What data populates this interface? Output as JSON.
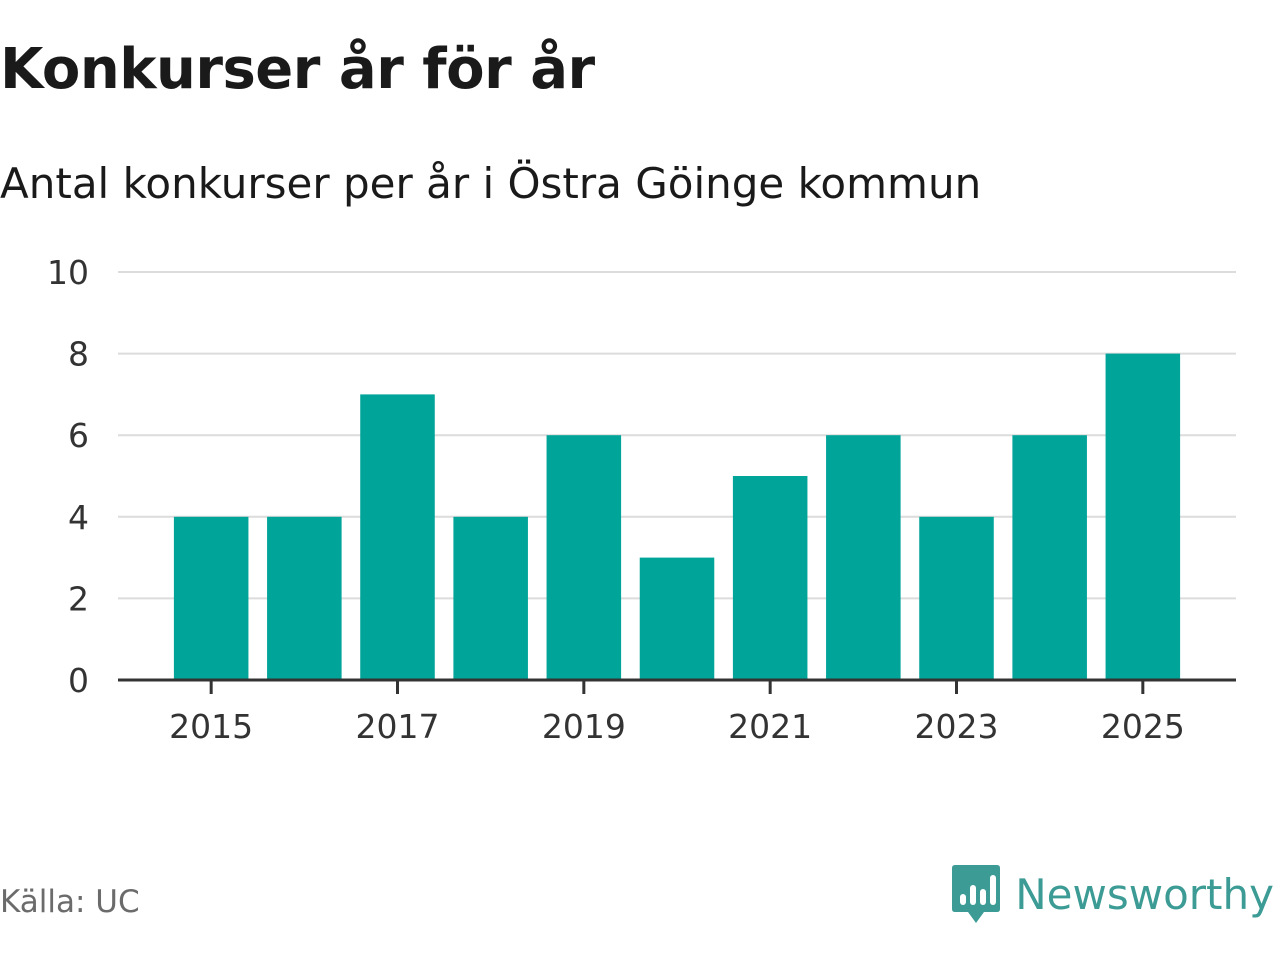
{
  "chart_data": {
    "type": "bar",
    "title": "Konkurser år för år",
    "subtitle": "Antal konkurser per år i Östra Göinge kommun",
    "categories": [
      "2015",
      "2016",
      "2017",
      "2018",
      "2019",
      "2020",
      "2021",
      "2022",
      "2023",
      "2024",
      "2025"
    ],
    "values": [
      4,
      4,
      7,
      4,
      6,
      3,
      5,
      6,
      4,
      6,
      8
    ],
    "xticks": [
      "2015",
      "2017",
      "2019",
      "2021",
      "2023",
      "2025"
    ],
    "yticks": [
      0,
      2,
      4,
      6,
      8,
      10
    ],
    "ylim": [
      0,
      10
    ],
    "xlabel": "",
    "ylabel": "",
    "grid": true,
    "legend": "none",
    "bar_color": "#00a499"
  },
  "source": "Källa: UC",
  "brand": {
    "name": "Newsworthy",
    "color": "#3c9c95",
    "icon": "newsworthy-logo-icon"
  }
}
